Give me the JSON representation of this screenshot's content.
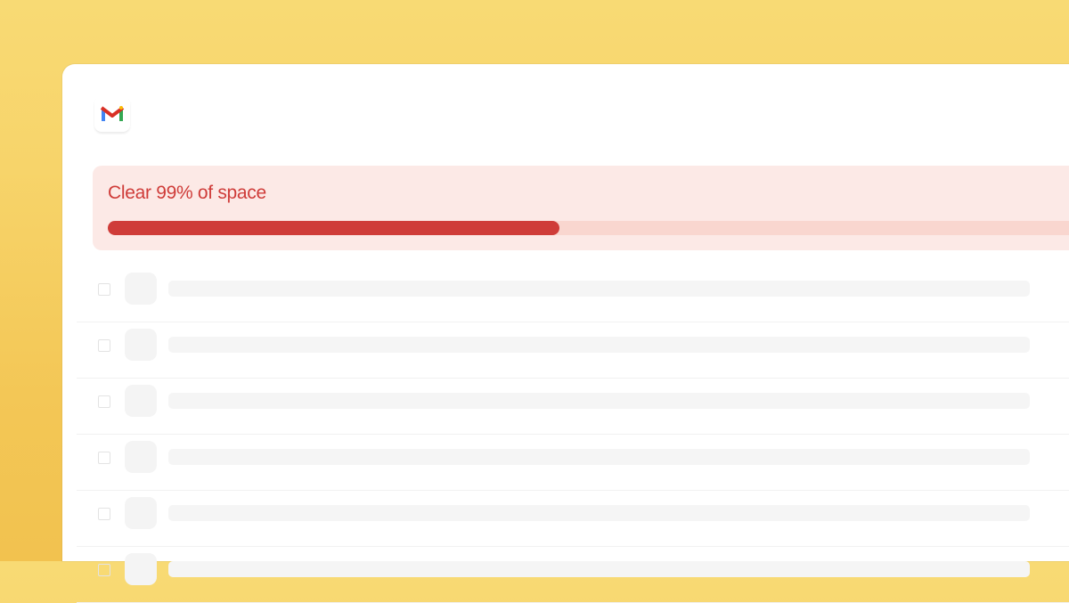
{
  "app": {
    "logo": "gmail-logo"
  },
  "banner": {
    "title": "Clear 99% of space",
    "progress_percent": 47,
    "colors": {
      "fill": "#cf3c39",
      "track": "#f9d6cf",
      "background": "#fce9e6"
    }
  },
  "list": {
    "rows": [
      {},
      {},
      {},
      {},
      {},
      {}
    ]
  }
}
